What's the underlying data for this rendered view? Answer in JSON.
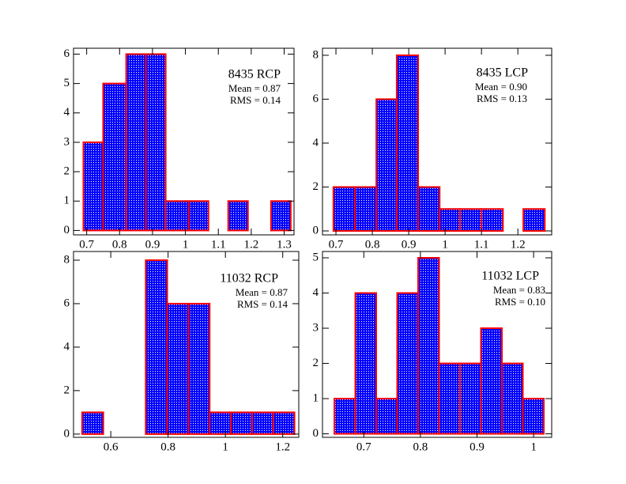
{
  "chart_data": [
    {
      "type": "histogram",
      "title": "8435 RCP",
      "annotations": [
        "Mean = 0.87",
        "RMS = 0.14"
      ],
      "bins": [
        0.69,
        0.75,
        0.82,
        0.88,
        0.94,
        1.01,
        1.07,
        1.13,
        1.19,
        1.26,
        1.32
      ],
      "values": [
        3,
        5,
        6,
        6,
        1,
        1,
        0,
        1,
        0,
        1
      ],
      "xlim": [
        0.66,
        1.33
      ],
      "xticks": [
        0.7,
        0.8,
        0.9,
        1,
        1.1,
        1.2,
        1.3
      ],
      "ylim": [
        -0.15,
        6.2
      ],
      "yticks": [
        0,
        1,
        2,
        3,
        4,
        5,
        6
      ],
      "color": "#0000ff",
      "edgecolor": "#ff0000"
    },
    {
      "type": "histogram",
      "title": "8435 LCP",
      "annotations": [
        "Mean = 0.90",
        "RMS = 0.13"
      ],
      "bins": [
        0.693,
        0.752,
        0.811,
        0.867,
        0.926,
        0.985,
        1.041,
        1.1,
        1.159,
        1.215,
        1.274
      ],
      "values": [
        2,
        2,
        6,
        8,
        2,
        1,
        1,
        1,
        0,
        1
      ],
      "xlim": [
        0.663,
        1.293
      ],
      "xticks": [
        0.7,
        0.8,
        0.9,
        1,
        1.1,
        1.2
      ],
      "ylim": [
        -0.18,
        8.32
      ],
      "yticks": [
        0,
        2,
        4,
        6,
        8
      ],
      "color": "#0000ff",
      "edgecolor": "#ff0000"
    },
    {
      "type": "histogram",
      "title": "11032 RCP",
      "annotations": [
        "Mean = 0.87",
        "RMS = 0.14"
      ],
      "bins": [
        0.5,
        0.574,
        0.648,
        0.722,
        0.797,
        0.871,
        0.945,
        1.019,
        1.093,
        1.167,
        1.241
      ],
      "values": [
        1,
        0,
        0,
        8,
        6,
        6,
        1,
        1,
        1,
        1
      ],
      "xlim": [
        0.47,
        1.256
      ],
      "xticks": [
        0.6,
        0.8,
        1,
        1.2
      ],
      "ylim": [
        -0.15,
        8.4
      ],
      "yticks": [
        0,
        2,
        4,
        6,
        8
      ],
      "color": "#0000ff",
      "edgecolor": "#ff0000"
    },
    {
      "type": "histogram",
      "title": "11032 LCP",
      "annotations": [
        "Mean = 0.83",
        "RMS = 0.10"
      ],
      "bins": [
        0.648,
        0.685,
        0.722,
        0.759,
        0.796,
        0.833,
        0.87,
        0.907,
        0.944,
        0.981,
        1.018
      ],
      "values": [
        1,
        4,
        1,
        4,
        5,
        2,
        2,
        3,
        2,
        1
      ],
      "xlim": [
        0.627,
        1.032
      ],
      "xticks": [
        0.7,
        0.8,
        0.9,
        1
      ],
      "ylim": [
        -0.1,
        5.18
      ],
      "yticks": [
        0,
        1,
        2,
        3,
        4,
        5
      ],
      "color": "#0000ff",
      "edgecolor": "#ff0000"
    }
  ]
}
